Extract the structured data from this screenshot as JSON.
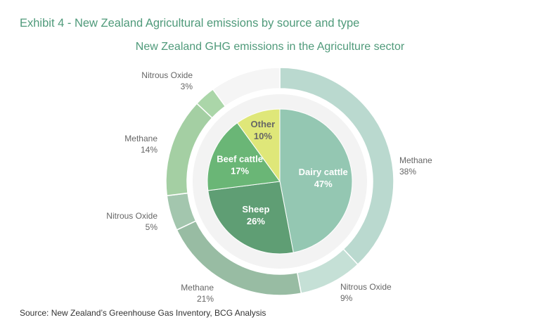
{
  "header": {
    "exhibit_title": "Exhibit 4 - New Zealand Agricultural emissions by source and type"
  },
  "footer": {
    "source": "Source: New Zealand’s Greenhouse Gas Inventory, BCG Analysis"
  },
  "colors": {
    "title": "#4f9a7a",
    "dairy": "#94c7b2",
    "sheep": "#5f9e74",
    "beef": "#6ab676",
    "other": "#dfe779",
    "methane_dairy": "#bad9cf",
    "nitrous_dairy": "#c5e0d6",
    "methane_sheep": "#98bca3",
    "nitrous_sheep": "#a3c6ae",
    "methane_beef": "#a4cfa3",
    "nitrous_beef": "#abd6a9",
    "other_outer": "#f5f5f5",
    "ring_gap": "#f3f3f3"
  },
  "chart_data": {
    "type": "pie",
    "variant": "nested-donut",
    "title": "New Zealand GHG emissions in the Agriculture sector",
    "inner": [
      {
        "name": "Dairy cattle",
        "percent": "47%",
        "value": 47
      },
      {
        "name": "Sheep",
        "percent": "26%",
        "value": 26
      },
      {
        "name": "Beef cattle",
        "percent": "17%",
        "value": 17
      },
      {
        "name": "Other",
        "percent": "10%",
        "value": 10
      }
    ],
    "outer": [
      {
        "type": "Methane",
        "source": "Dairy cattle",
        "percent": "38%",
        "value": 38
      },
      {
        "type": "Nitrous Oxide",
        "source": "Dairy cattle",
        "percent": "9%",
        "value": 9
      },
      {
        "type": "Methane",
        "source": "Sheep",
        "percent": "21%",
        "value": 21
      },
      {
        "type": "Nitrous Oxide",
        "source": "Sheep",
        "percent": "5%",
        "value": 5
      },
      {
        "type": "Methane",
        "source": "Beef cattle",
        "percent": "14%",
        "value": 14
      },
      {
        "type": "Nitrous Oxide",
        "source": "Beef cattle",
        "percent": "3%",
        "value": 3
      },
      {
        "type": "",
        "source": "Other",
        "percent": "",
        "value": 10
      }
    ]
  }
}
